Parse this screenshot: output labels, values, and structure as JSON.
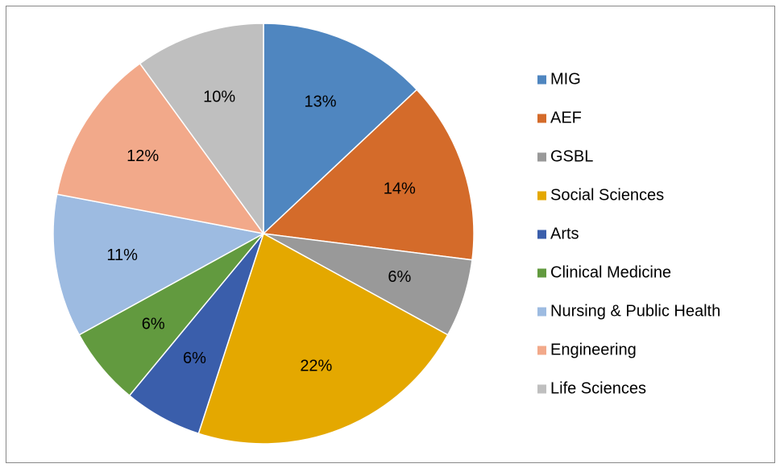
{
  "chart_data": {
    "type": "pie",
    "categories": [
      "MIG",
      "AEF",
      "GSBL",
      "Social Sciences",
      "Arts",
      "Clinical Medicine",
      "Nursing & Public Health",
      "Engineering",
      "Life Sciences"
    ],
    "values": [
      13,
      14,
      6,
      22,
      6,
      6,
      11,
      12,
      10
    ],
    "value_labels": [
      "13%",
      "14%",
      "6%",
      "22%",
      "6%",
      "6%",
      "11%",
      "12%",
      "10%"
    ],
    "colors": [
      "#4f86c0",
      "#d46b2a",
      "#999999",
      "#e4a800",
      "#3a5eab",
      "#629a3f",
      "#9dbbe1",
      "#f2a98a",
      "#bfbfbf"
    ],
    "legend": "right"
  }
}
